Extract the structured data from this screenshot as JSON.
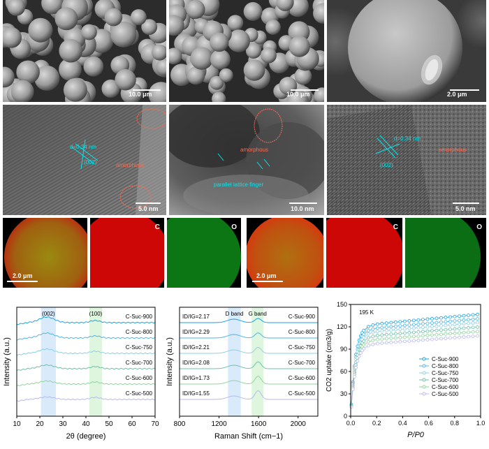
{
  "sem": {
    "p1": {
      "scale": "10.0 μm"
    },
    "p2": {
      "scale": "10.0 μm"
    },
    "p3": {
      "scale": "2.0 μm"
    }
  },
  "tem": {
    "p1": {
      "d": "d=0.34 nm",
      "plane": "(002)",
      "amorphous": "amorphous",
      "scale": "5.0 nm"
    },
    "p2": {
      "amorphous": "amorphous",
      "fringe": "parallel lattice finger",
      "scale": "10.0 nm"
    },
    "p3": {
      "d": "d=0.34 nm",
      "plane": "(002)",
      "amorphous": "amorphous",
      "scale": "5.0 nm"
    }
  },
  "eds": {
    "left": {
      "scale": "2.0 μm",
      "c": "C",
      "o": "O"
    },
    "right": {
      "scale": "2.0 μm",
      "c": "C",
      "o": "O"
    }
  },
  "colors": {
    "carbon": "#e00000",
    "oxygen": "#10a020",
    "fringe": "#00e5ee",
    "amorph": "#ff6a50"
  },
  "chart_data": [
    {
      "type": "line",
      "xlabel": "2θ (degree)",
      "ylabel": "Intensity (a.u.)",
      "xlim": [
        10,
        70
      ],
      "xticks": [
        10,
        20,
        30,
        40,
        50,
        60,
        70
      ],
      "bands": [
        {
          "label": "(002)",
          "range": [
            20.5,
            27
          ]
        },
        {
          "label": "(100)",
          "range": [
            41.5,
            47
          ]
        }
      ],
      "series": [
        {
          "name": "C-Suc-900",
          "color": "#1aa3e6"
        },
        {
          "name": "C-Suc-800",
          "color": "#4db5e8"
        },
        {
          "name": "C-Suc-750",
          "color": "#8ccfe8"
        },
        {
          "name": "C-Suc-700",
          "color": "#6cc2a8"
        },
        {
          "name": "C-Suc-600",
          "color": "#8ed69a"
        },
        {
          "name": "C-Suc-500",
          "color": "#b9b9f0"
        }
      ]
    },
    {
      "type": "line",
      "xlabel": "Raman Shift (cm−1)",
      "ylabel": "Intensity (a.u.)",
      "xlim": [
        800,
        2200
      ],
      "xticks": [
        800,
        1200,
        1600,
        2000
      ],
      "bands": [
        {
          "label": "D band",
          "range": [
            1290,
            1420
          ]
        },
        {
          "label": "G band",
          "range": [
            1530,
            1650
          ]
        }
      ],
      "ratios": [
        "ID/IG=2.17",
        "ID/IG=2.29",
        "ID/IG=2.21",
        "ID/IG=2.08",
        "ID/IG=1.73",
        "ID/IG=1.55"
      ],
      "series": [
        {
          "name": "C-Suc-900",
          "color": "#1aa3e6"
        },
        {
          "name": "C-Suc-800",
          "color": "#4db5e8"
        },
        {
          "name": "C-Suc-750",
          "color": "#8ccfe8"
        },
        {
          "name": "C-Suc-700",
          "color": "#6cc2a8"
        },
        {
          "name": "C-Suc-600",
          "color": "#8ed69a"
        },
        {
          "name": "C-Suc-500",
          "color": "#b9b9f0"
        }
      ]
    },
    {
      "type": "scatter",
      "xlabel": "P/P0",
      "ylabel": "CO2 uptake (cm3/g)",
      "xlim": [
        0,
        1.0
      ],
      "ylim": [
        0,
        150
      ],
      "xticks": [
        0.0,
        0.2,
        0.4,
        0.6,
        0.8,
        1.0
      ],
      "yticks": [
        0,
        30,
        60,
        90,
        120,
        150
      ],
      "annotation": "195 K",
      "series": [
        {
          "name": "C-Suc-900",
          "color": "#1aa3e6",
          "plateau": 137
        },
        {
          "name": "C-Suc-800",
          "color": "#4db5e8",
          "plateau": 131
        },
        {
          "name": "C-Suc-750",
          "color": "#8ccfe8",
          "plateau": 126
        },
        {
          "name": "C-Suc-700",
          "color": "#6cc2a8",
          "plateau": 120
        },
        {
          "name": "C-Suc-600",
          "color": "#8ed69a",
          "plateau": 114
        },
        {
          "name": "C-Suc-500",
          "color": "#b9b9f0",
          "plateau": 108
        }
      ]
    }
  ]
}
